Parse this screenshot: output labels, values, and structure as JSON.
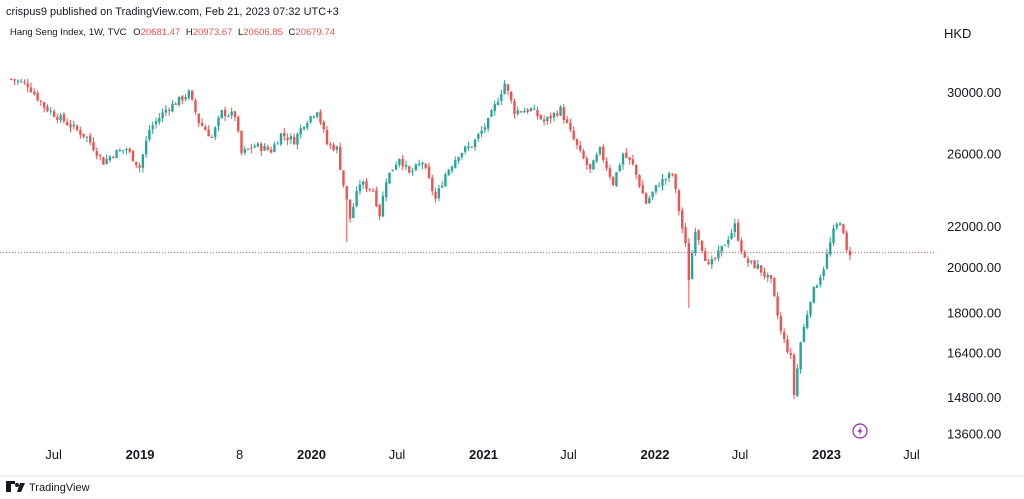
{
  "header": {
    "publisher": "crispus9 published on TradingView.com, Feb 21, 2023 07:32 UTC+3"
  },
  "legend": {
    "symbol": "Hang Seng Index, 1W, TVC",
    "open_label": "O",
    "open_value": "20681.47",
    "high_label": "H",
    "high_value": "20973.67",
    "low_label": "L",
    "low_value": "20606.85",
    "close_label": "C",
    "close_value": "20679.74"
  },
  "currency": "HKD",
  "footer": {
    "brand": "TradingView"
  },
  "colors": {
    "up": "#26a69a",
    "down": "#ef5350",
    "price_line": "#ef5350",
    "text": "#131722",
    "legend_value": "#ef5350",
    "badge": "#9c27b0"
  },
  "icons": {
    "lightning_badge": "lightning-icon",
    "brand_logo": "tradingview-logo-icon"
  },
  "chart_data": {
    "type": "candlestick",
    "title": "",
    "y_scale": "log",
    "last_price": 20679.74,
    "y_ticks": [
      {
        "value": 30000,
        "label": "30000.00"
      },
      {
        "value": 26000,
        "label": "26000.00"
      },
      {
        "value": 22000,
        "label": "22000.00"
      },
      {
        "value": 20000,
        "label": "20000.00"
      },
      {
        "value": 18000,
        "label": "18000.00"
      },
      {
        "value": 16400,
        "label": "16400.00"
      },
      {
        "value": 14800,
        "label": "14800.00"
      },
      {
        "value": 13600,
        "label": "13600.00"
      }
    ],
    "x_ticks": [
      {
        "date": "2018-07-01",
        "label": "Jul",
        "bold": false
      },
      {
        "date": "2019-01-01",
        "label": "2019",
        "bold": true
      },
      {
        "date": "2019-08-01",
        "label": "8",
        "bold": false
      },
      {
        "date": "2020-01-01",
        "label": "2020",
        "bold": true
      },
      {
        "date": "2020-07-01",
        "label": "Jul",
        "bold": false
      },
      {
        "date": "2021-01-01",
        "label": "2021",
        "bold": true
      },
      {
        "date": "2021-07-01",
        "label": "Jul",
        "bold": false
      },
      {
        "date": "2022-01-01",
        "label": "2022",
        "bold": true
      },
      {
        "date": "2022-07-01",
        "label": "Jul",
        "bold": false
      },
      {
        "date": "2023-01-01",
        "label": "2023",
        "bold": true
      },
      {
        "date": "2023-07-01",
        "label": "Jul",
        "bold": false
      }
    ],
    "series_path": [
      [
        "2018-04-02",
        30900
      ],
      [
        "2018-05-07",
        30500
      ],
      [
        "2018-06-11",
        29000
      ],
      [
        "2018-07-02",
        28500
      ],
      [
        "2018-08-13",
        27600
      ],
      [
        "2018-09-10",
        27000
      ],
      [
        "2018-10-15",
        25500
      ],
      [
        "2018-11-05",
        26000
      ],
      [
        "2018-12-03",
        26300
      ],
      [
        "2018-12-31",
        25200
      ],
      [
        "2019-01-21",
        27500
      ],
      [
        "2019-02-25",
        28800
      ],
      [
        "2019-04-15",
        29900
      ],
      [
        "2019-05-06",
        28000
      ],
      [
        "2019-06-03",
        27000
      ],
      [
        "2019-06-24",
        28600
      ],
      [
        "2019-07-22",
        28400
      ],
      [
        "2019-08-05",
        26000
      ],
      [
        "2019-09-02",
        26500
      ],
      [
        "2019-10-07",
        26200
      ],
      [
        "2019-10-28",
        27200
      ],
      [
        "2019-11-25",
        26800
      ],
      [
        "2019-12-16",
        27900
      ],
      [
        "2020-01-13",
        28800
      ],
      [
        "2020-02-03",
        26600
      ],
      [
        "2020-02-24",
        26300
      ],
      [
        "2020-03-09",
        24200
      ],
      [
        "2020-03-23",
        22400
      ],
      [
        "2020-04-13",
        24300
      ],
      [
        "2020-05-11",
        23900
      ],
      [
        "2020-05-25",
        22600
      ],
      [
        "2020-06-08",
        24500
      ],
      [
        "2020-07-06",
        25800
      ],
      [
        "2020-07-27",
        24800
      ],
      [
        "2020-08-24",
        25500
      ],
      [
        "2020-09-21",
        23400
      ],
      [
        "2020-10-12",
        24800
      ],
      [
        "2020-11-09",
        26000
      ],
      [
        "2020-12-07",
        26500
      ],
      [
        "2021-01-11",
        28000
      ],
      [
        "2021-02-15",
        30600
      ],
      [
        "2021-03-08",
        28700
      ],
      [
        "2021-04-12",
        28800
      ],
      [
        "2021-05-10",
        28000
      ],
      [
        "2021-06-14",
        28800
      ],
      [
        "2021-07-05",
        27300
      ],
      [
        "2021-07-26",
        26000
      ],
      [
        "2021-08-16",
        25000
      ],
      [
        "2021-09-06",
        26200
      ],
      [
        "2021-10-04",
        24300
      ],
      [
        "2021-10-25",
        26000
      ],
      [
        "2021-11-15",
        25300
      ],
      [
        "2021-12-13",
        23200
      ],
      [
        "2022-01-10",
        24300
      ],
      [
        "2022-02-07",
        24800
      ],
      [
        "2022-03-07",
        21000
      ],
      [
        "2022-03-14",
        19500
      ],
      [
        "2022-03-28",
        21900
      ],
      [
        "2022-04-25",
        20000
      ],
      [
        "2022-05-16",
        20600
      ],
      [
        "2022-06-20",
        22000
      ],
      [
        "2022-07-11",
        20300
      ],
      [
        "2022-08-08",
        20000
      ],
      [
        "2022-09-05",
        19300
      ],
      [
        "2022-09-26",
        17200
      ],
      [
        "2022-10-17",
        16200
      ],
      [
        "2022-10-24",
        14900
      ],
      [
        "2022-11-07",
        16800
      ],
      [
        "2022-11-28",
        18600
      ],
      [
        "2022-12-26",
        20000
      ],
      [
        "2023-01-16",
        21700
      ],
      [
        "2023-01-30",
        22300
      ],
      [
        "2023-02-13",
        20700
      ],
      [
        "2023-02-20",
        20680
      ]
    ],
    "special_wicks": [
      {
        "date": "2020-03-16",
        "low": 21200
      },
      {
        "date": "2022-03-14",
        "low": 18200
      }
    ],
    "x_range": [
      "2018-03-26",
      "2023-08-20"
    ],
    "y_range": [
      13400,
      32000
    ]
  }
}
